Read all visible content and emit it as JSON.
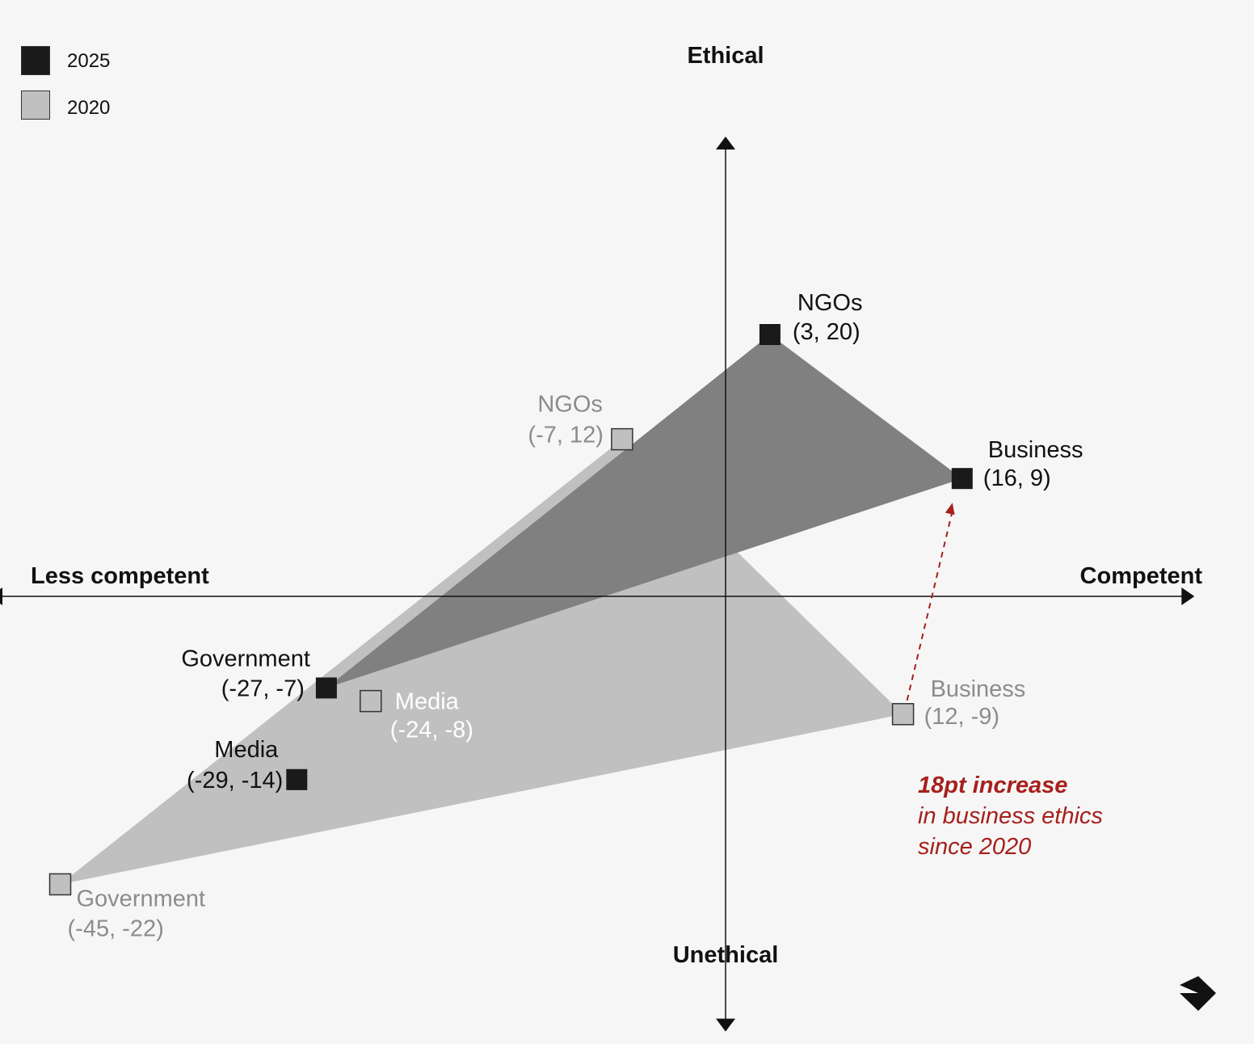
{
  "colors": {
    "series_2025_marker": "#1a1a1a",
    "series_2025_area": "#808080",
    "series_2020_marker": "#c0c0c0",
    "series_2020_area": "#c0c0c0",
    "label_2025": "#111111",
    "label_2020": "#8c8c8c",
    "label_2020_media": "#ffffff",
    "annotation": "#a6201d",
    "background": "#f6f6f6"
  },
  "legend": [
    {
      "label": "2025",
      "color_key": "series_2025_marker"
    },
    {
      "label": "2020",
      "color_key": "series_2020_marker"
    }
  ],
  "icons": {
    "corner_logo": "arrow-turn-icon"
  },
  "chart_data": {
    "type": "scatter",
    "title": "",
    "axes": {
      "x": {
        "min": -50,
        "max": 31,
        "neg_label": "Less competent",
        "pos_label": "Competent"
      },
      "y": {
        "min": -33,
        "max": 35,
        "neg_label": "Unethical",
        "pos_label": "Ethical"
      }
    },
    "grid": false,
    "legend_position": "top-left",
    "series": [
      {
        "name": "2020",
        "polygon": [
          "NGOs",
          "Business",
          "Government"
        ],
        "points": [
          {
            "name": "NGOs",
            "coord_label": "(-7, 12)",
            "x": -7,
            "y": 12
          },
          {
            "name": "Media",
            "coord_label": "(-24, -8)",
            "x": -24,
            "y": -8
          },
          {
            "name": "Business",
            "coord_label": "(12, -9)",
            "x": 12,
            "y": -9
          },
          {
            "name": "Government",
            "coord_label": "(-45, -22)",
            "x": -45,
            "y": -22
          }
        ]
      },
      {
        "name": "2025",
        "polygon": [
          "NGOs",
          "Business",
          "Government"
        ],
        "points": [
          {
            "name": "NGOs",
            "coord_label": "(3, 20)",
            "x": 3,
            "y": 20
          },
          {
            "name": "Business",
            "coord_label": "(16, 9)",
            "x": 16,
            "y": 9
          },
          {
            "name": "Government",
            "coord_label": "(-27, -7)",
            "x": -27,
            "y": -7
          },
          {
            "name": "Media",
            "coord_label": "(-29, -14)",
            "x": -29,
            "y": -14
          }
        ]
      }
    ],
    "annotation": {
      "lines": [
        "18pt increase",
        "in business ethics",
        "since 2020"
      ],
      "from": {
        "x": 12,
        "y": -9
      },
      "to": {
        "x": 16,
        "y": 9
      }
    }
  }
}
